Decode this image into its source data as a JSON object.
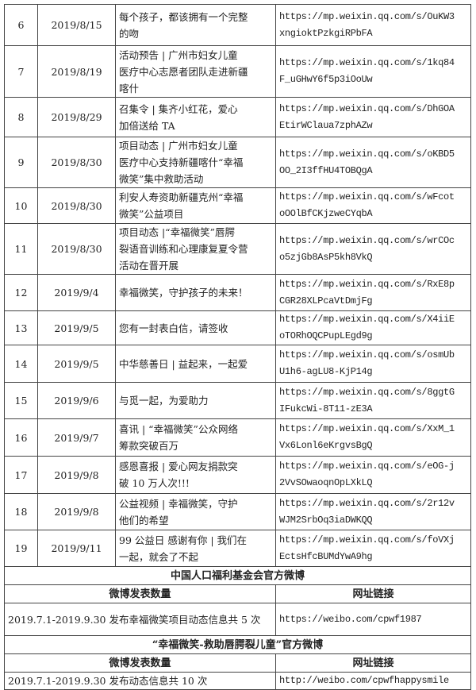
{
  "rows": [
    {
      "no": "6",
      "date": "2019/8/15",
      "title": [
        "每个孩子，都该拥有一个完整",
        "的吻"
      ],
      "link": [
        "https://mp.weixin.qq.com/s/OuKW3",
        "xngioktPzkgiRPbFA"
      ]
    },
    {
      "no": "7",
      "date": "2019/8/19",
      "title": [
        "活动预告 | 广州市妇女儿童",
        "医疗中心志愿者团队走进新疆",
        "喀什"
      ],
      "link": [
        "https://mp.weixin.qq.com/s/1kq84",
        "F_uGHwY6f5p3iOoUw"
      ]
    },
    {
      "no": "8",
      "date": "2019/8/29",
      "title": [
        "召集令 | 集齐小红花，爱心",
        "加倍送给 TA"
      ],
      "link": [
        "https://mp.weixin.qq.com/s/DhGOA",
        "EtirWClaua7zphAZw"
      ]
    },
    {
      "no": "9",
      "date": "2019/8/30",
      "title": [
        "项目动态 | 广州市妇女儿童",
        "医疗中心支持新疆喀什“幸福",
        "微笑”集中救助活动"
      ],
      "link": [
        "https://mp.weixin.qq.com/s/oKBD5",
        "OO_2I3ffHU4TOBQgA"
      ]
    },
    {
      "no": "10",
      "date": "2019/8/30",
      "title": [
        "利安人寿资助新疆克州“幸福",
        "微笑”公益项目"
      ],
      "link": [
        "https://mp.weixin.qq.com/s/wFcot",
        "oOOlBfCKjzweCYqbA"
      ]
    },
    {
      "no": "11",
      "date": "2019/8/30",
      "title": [
        "项目动态 |“幸福微笑”唇腭",
        "裂语音训练和心理康复夏令营",
        "活动在晋开展"
      ],
      "link": [
        "https://mp.weixin.qq.com/s/wrCOc",
        "o5zjGb8AsP5kh8VkQ"
      ]
    },
    {
      "no": "12",
      "date": "2019/9/4",
      "title": [
        "幸福微笑，守护孩子的未来！"
      ],
      "link": [
        "https://mp.weixin.qq.com/s/RxE8p",
        "CGR28XLPcaVtDmjFg"
      ]
    },
    {
      "no": "13",
      "date": "2019/9/5",
      "title": [
        "您有一封表白信，请签收"
      ],
      "link": [
        "https://mp.weixin.qq.com/s/X4iiE",
        "oTORhOQCPupLEgd9g"
      ]
    },
    {
      "no": "14",
      "date": "2019/9/5",
      "title": [
        "中华慈善日 | 益起来，一起爱"
      ],
      "link": [
        "https://mp.weixin.qq.com/s/osmUb",
        "U1h6-agLU8-KjP14g"
      ]
    },
    {
      "no": "15",
      "date": "2019/9/6",
      "title": [
        "与觅一起，为爱助力"
      ],
      "link": [
        "https://mp.weixin.qq.com/s/8ggtG",
        "IFukcWi-8T11-zE3A"
      ]
    },
    {
      "no": "16",
      "date": "2019/9/7",
      "title": [
        "喜讯 | “幸福微笑”公众网络",
        "筹款突破百万"
      ],
      "link": [
        "https://mp.weixin.qq.com/s/XxM_1",
        "Vx6Lonl6eKrgvsBgQ"
      ]
    },
    {
      "no": "17",
      "date": "2019/9/8",
      "title": [
        "感恩喜报 | 爱心网友捐款突",
        "破 10 万人次!!!"
      ],
      "link": [
        "https://mp.weixin.qq.com/s/eOG-j",
        "2VvSOwaoqnOpLXkLQ"
      ]
    },
    {
      "no": "18",
      "date": "2019/9/8",
      "title": [
        "公益视频 | 幸福微笑，守护",
        "他们的希望"
      ],
      "link": [
        "https://mp.weixin.qq.com/s/2r12v",
        "WJM2SrbOq3iaDWKQQ"
      ]
    },
    {
      "no": "19",
      "date": "2019/9/11",
      "title": [
        "99 公益日 感谢有你 | 我们在",
        "一起，就会了不起"
      ],
      "link": [
        "https://mp.weixin.qq.com/s/foVXj",
        "EctsHfcBUMdYwA9hg"
      ]
    }
  ],
  "weibo1": {
    "title": "中国人口福利基金会官方微博",
    "col1": "微博发表数量",
    "col2": "网址链接",
    "count": "2019.7.1-2019.9.30 发布幸福微笑项目动态信息共 5 次",
    "link": "https://weibo.com/cpwf1987"
  },
  "weibo2": {
    "title": "“幸福微笑-救助唇腭裂儿童”官方微博",
    "col1": "微博发表数量",
    "col2": "网址链接",
    "count": "2019.7.1-2019.9.30 发布动态信息共 10 次",
    "link": "http://weibo.com/cpwfhappysmile"
  }
}
